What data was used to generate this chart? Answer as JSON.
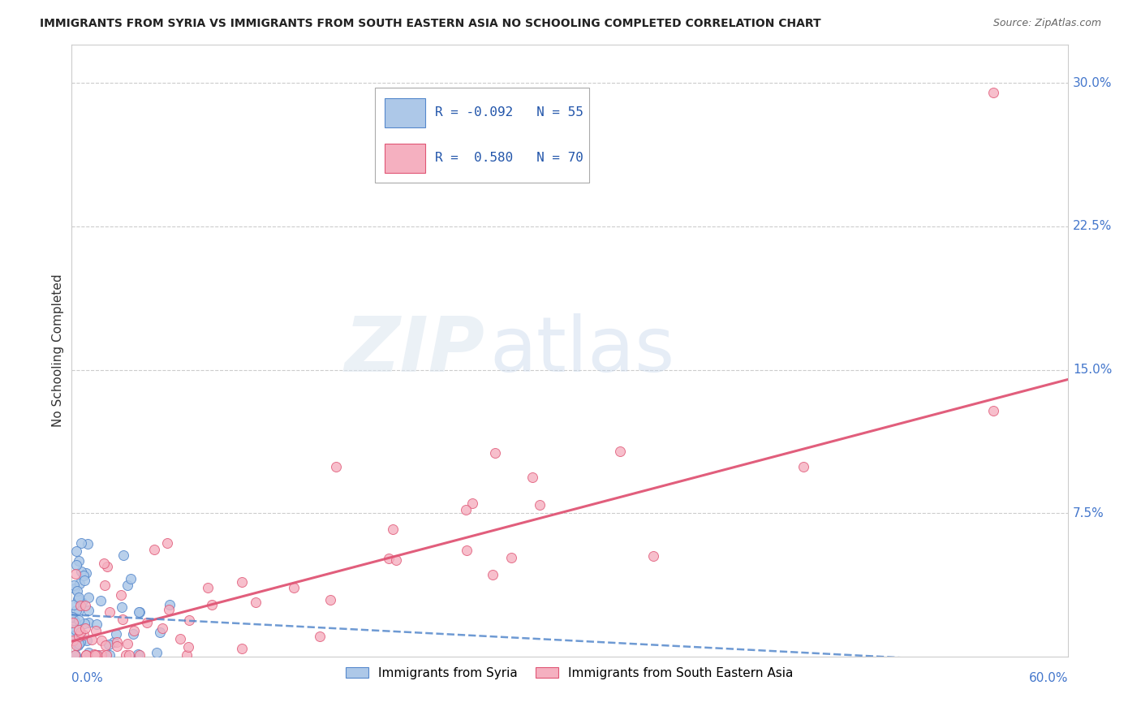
{
  "title": "IMMIGRANTS FROM SYRIA VS IMMIGRANTS FROM SOUTH EASTERN ASIA NO SCHOOLING COMPLETED CORRELATION CHART",
  "source": "Source: ZipAtlas.com",
  "ylabel": "No Schooling Completed",
  "xlim": [
    0.0,
    0.6
  ],
  "ylim": [
    0.0,
    0.32
  ],
  "legend_r_syria": "-0.092",
  "legend_n_syria": "55",
  "legend_r_sea": "0.580",
  "legend_n_sea": "70",
  "color_syria": "#adc8e8",
  "color_sea": "#f5b0c0",
  "trendline_syria_color": "#5588cc",
  "trendline_sea_color": "#e05575",
  "watermark_zip": "ZIP",
  "watermark_atlas": "atlas",
  "ytick_values": [
    0.075,
    0.15,
    0.225,
    0.3
  ],
  "ytick_labels": [
    "7.5%",
    "15.0%",
    "22.5%",
    "30.0%"
  ],
  "sea_trendline_x0": 0.0,
  "sea_trendline_y0": 0.008,
  "sea_trendline_x1": 0.6,
  "sea_trendline_y1": 0.145,
  "syria_trendline_x0": 0.0,
  "syria_trendline_y0": 0.022,
  "syria_trendline_x1": 0.6,
  "syria_trendline_y1": -0.005
}
